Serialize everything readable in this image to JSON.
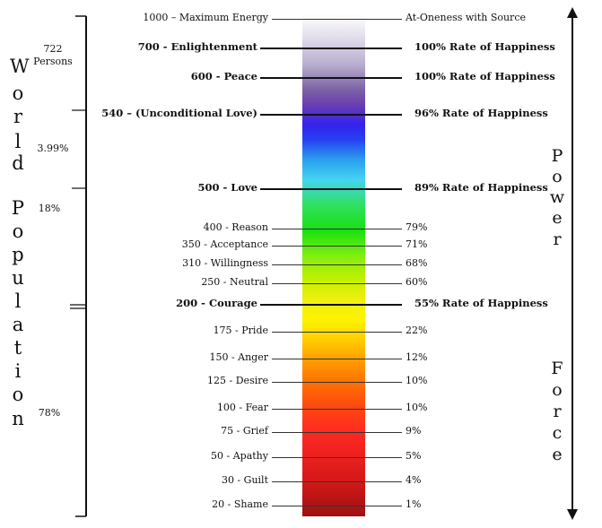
{
  "left_axis": {
    "title_letters": [
      "W",
      "o",
      "r",
      "l",
      "d",
      "P",
      "o",
      "p",
      "u",
      "l",
      "a",
      "t",
      "i",
      "o",
      "n"
    ],
    "segments": [
      {
        "label": "722\nPersons"
      },
      {
        "label": "3.99%"
      },
      {
        "label": "18%"
      },
      {
        "label": "78%"
      }
    ]
  },
  "right_axis": {
    "power_letters": [
      "P",
      "o",
      "w",
      "e",
      "r"
    ],
    "force_letters": [
      "F",
      "o",
      "r",
      "c",
      "e"
    ]
  },
  "levels": [
    {
      "left": "1000 – Maximum Energy",
      "right": "At-Oneness with Source",
      "bold": false
    },
    {
      "left": "700 - Enlightenment",
      "right": "100% Rate of Happiness",
      "bold": true
    },
    {
      "left": "600 - Peace",
      "right": "100% Rate of Happiness",
      "bold": true
    },
    {
      "left": "540 – (Unconditional Love)",
      "right": "96% Rate of Happiness",
      "bold": true
    },
    {
      "left": "500 - Love",
      "right": "89% Rate of Happiness",
      "bold": true
    },
    {
      "left": "400 - Reason",
      "right": "79%",
      "bold": false
    },
    {
      "left": "350 - Acceptance",
      "right": "71%",
      "bold": false
    },
    {
      "left": "310 - Willingness",
      "right": "68%",
      "bold": false
    },
    {
      "left": "250 - Neutral",
      "right": "60%",
      "bold": false
    },
    {
      "left": "200 - Courage",
      "right": "55% Rate of Happiness",
      "bold": true
    },
    {
      "left": "175 - Pride",
      "right": "22%",
      "bold": false
    },
    {
      "left": "150 - Anger",
      "right": "12%",
      "bold": false
    },
    {
      "left": "125 - Desire",
      "right": "10%",
      "bold": false
    },
    {
      "left": "100 - Fear",
      "right": "10%",
      "bold": false
    },
    {
      "left": "75 -  Grief",
      "right": "9%",
      "bold": false
    },
    {
      "left": "50 - Apathy",
      "right": "5%",
      "bold": false
    },
    {
      "left": "30 - Guilt",
      "right": "4%",
      "bold": false
    },
    {
      "left": "20 - Shame",
      "right": "1%",
      "bold": false
    }
  ]
}
